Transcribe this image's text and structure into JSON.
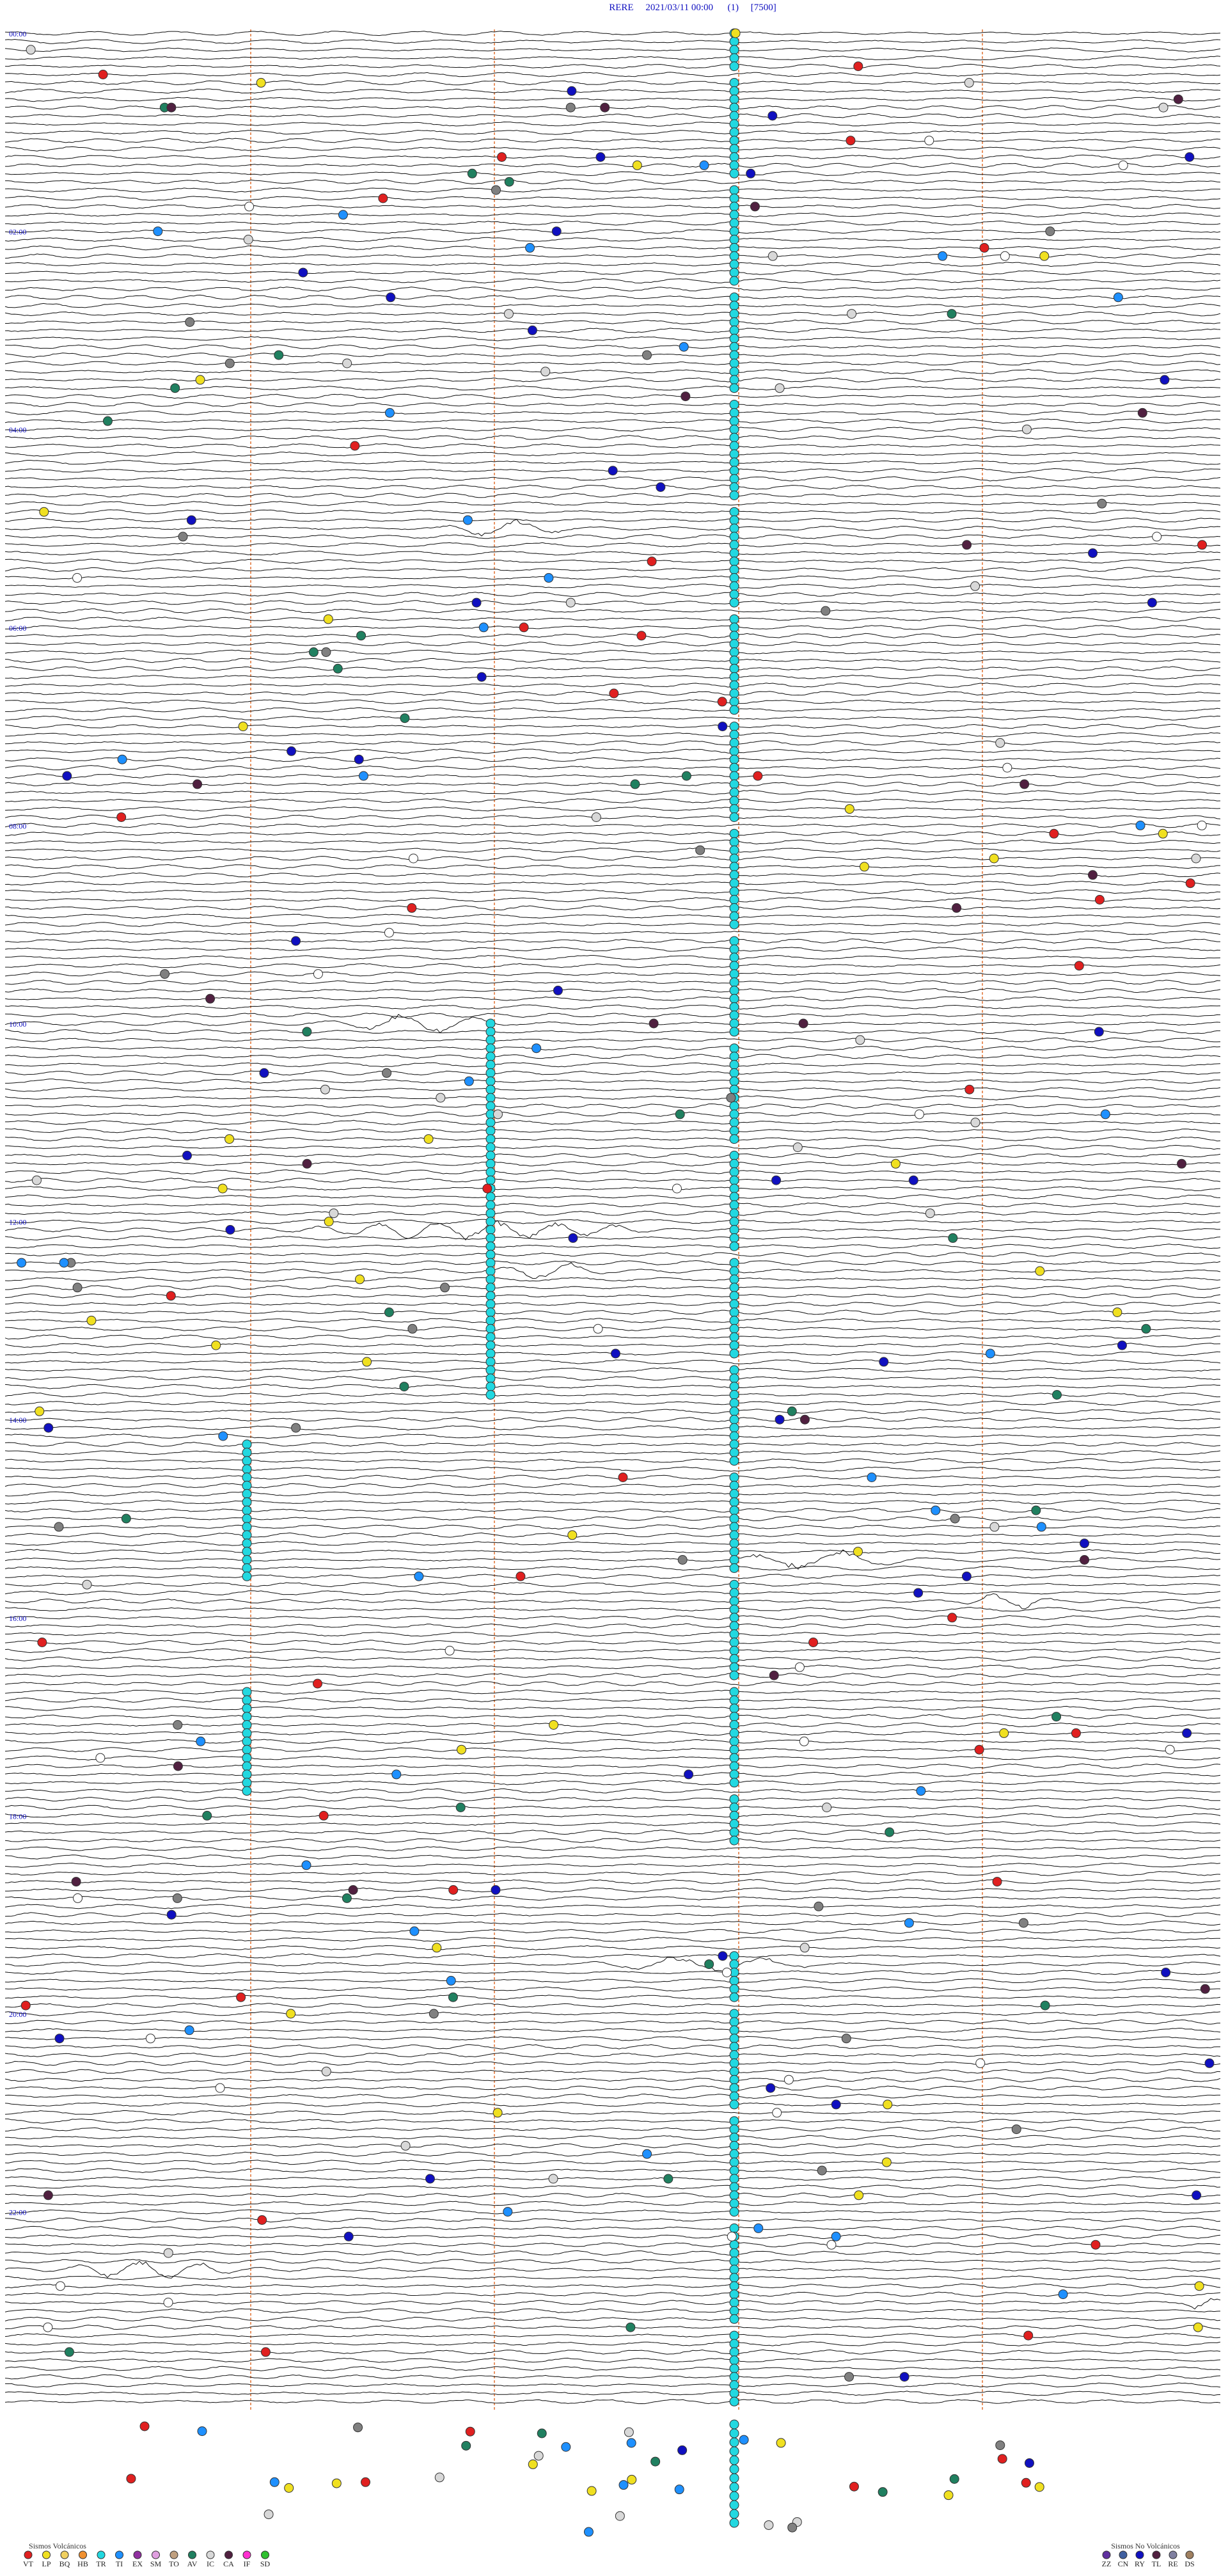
{
  "header": {
    "title": "RERE     2021/03/11 00:00      (1)     [7500]"
  },
  "hours": [
    "00:00",
    "02:00",
    "04:00",
    "06:00",
    "08:00",
    "10:00",
    "12:00",
    "14:00",
    "16:00",
    "18:00",
    "20:00",
    "22:00"
  ],
  "legend_volcanic": {
    "title": "Sismos Volcánicos",
    "codes": [
      "VT",
      "LP",
      "BQ",
      "HB",
      "TR",
      "TI",
      "EX",
      "SM",
      "TO",
      "AV",
      "IC",
      "CA",
      "IF",
      "SD"
    ]
  },
  "legend_non_volcanic": {
    "title": "Sismos No Volcánicos",
    "codes": [
      "ZZ",
      "CN",
      "RY",
      "TL",
      "RE",
      "DS"
    ]
  }
}
